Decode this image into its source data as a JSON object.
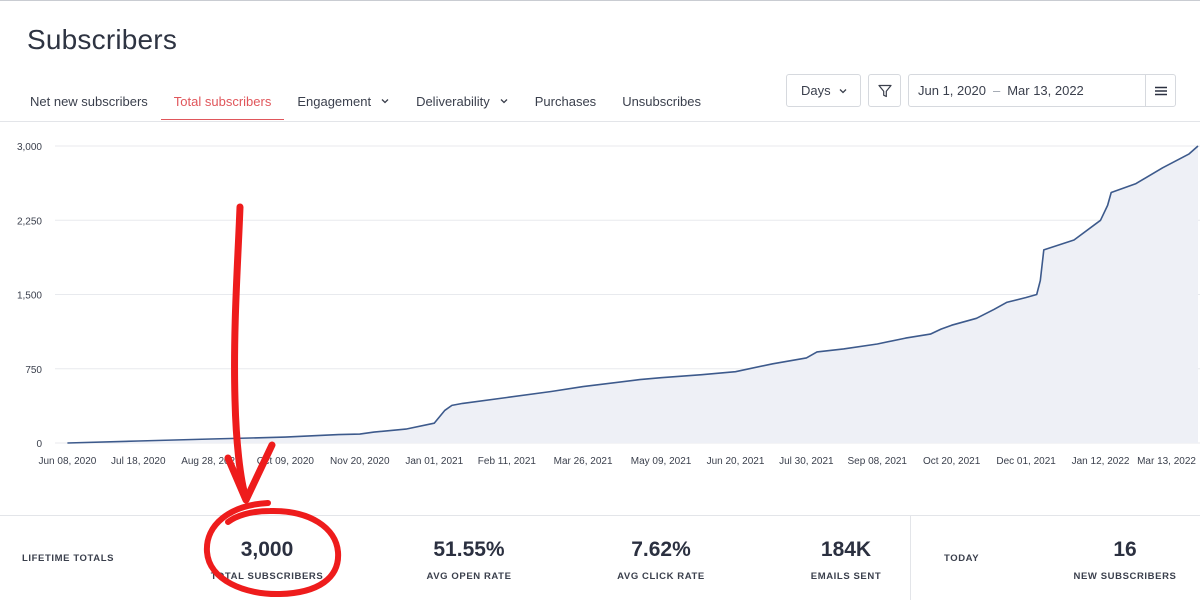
{
  "page": {
    "title": "Subscribers"
  },
  "tabs": [
    {
      "label": "Net new subscribers",
      "active": false,
      "dropdown": false
    },
    {
      "label": "Total subscribers",
      "active": true,
      "dropdown": false
    },
    {
      "label": "Engagement",
      "active": false,
      "dropdown": true
    },
    {
      "label": "Deliverability",
      "active": false,
      "dropdown": true
    },
    {
      "label": "Purchases",
      "active": false,
      "dropdown": false
    },
    {
      "label": "Unsubscribes",
      "active": false,
      "dropdown": false
    }
  ],
  "controls": {
    "granularity": "Days",
    "date_start": "Jun 1, 2020",
    "date_separator": "–",
    "date_end": "Mar 13, 2022",
    "icons": {
      "filter": "filter-icon",
      "menu": "menu-icon",
      "dropdown": "chevron-down-icon"
    }
  },
  "colors": {
    "accent": "#e0565b",
    "line": "#3d5a8c",
    "area": "#eef0f6",
    "grid": "#e8eaee",
    "annotation": "#ee1c1c"
  },
  "chart_data": {
    "type": "area",
    "title": "Total subscribers",
    "xlabel": "",
    "ylabel": "",
    "ylim": [
      0,
      3000
    ],
    "yticks": [
      0,
      750,
      1500,
      2250,
      3000
    ],
    "ytick_labels": [
      "0",
      "750",
      "1,500",
      "2,250",
      "3,000"
    ],
    "grid": true,
    "xlim_days": [
      0,
      645
    ],
    "xticks": [
      {
        "label": "Jun 08, 2020",
        "day": 7
      },
      {
        "label": "Jul 18, 2020",
        "day": 47
      },
      {
        "label": "Aug 28, 2020",
        "day": 88
      },
      {
        "label": "Oct 09, 2020",
        "day": 130
      },
      {
        "label": "Nov 20, 2020",
        "day": 172
      },
      {
        "label": "Jan 01, 2021",
        "day": 214
      },
      {
        "label": "Feb 11, 2021",
        "day": 255
      },
      {
        "label": "Mar 26, 2021",
        "day": 298
      },
      {
        "label": "May 09, 2021",
        "day": 342
      },
      {
        "label": "Jun 20, 2021",
        "day": 384
      },
      {
        "label": "Jul 30, 2021",
        "day": 424
      },
      {
        "label": "Sep 08, 2021",
        "day": 464
      },
      {
        "label": "Oct 20, 2021",
        "day": 506
      },
      {
        "label": "Dec 01, 2021",
        "day": 548
      },
      {
        "label": "Jan 12, 2022",
        "day": 590
      },
      {
        "label": "Mar 13, 2022",
        "day": 650
      }
    ],
    "series": [
      {
        "name": "Total subscribers",
        "day_offsets": [
          7,
          47,
          88,
          130,
          160,
          172,
          180,
          198,
          214,
          220,
          224,
          230,
          255,
          280,
          298,
          330,
          342,
          365,
          384,
          405,
          424,
          430,
          445,
          464,
          480,
          494,
          500,
          506,
          520,
          530,
          537,
          548,
          554,
          556,
          558,
          575,
          590,
          594,
          596,
          610,
          625,
          640,
          645
        ],
        "values": [
          0,
          20,
          40,
          60,
          85,
          90,
          110,
          140,
          200,
          330,
          380,
          400,
          460,
          520,
          570,
          640,
          660,
          690,
          720,
          800,
          860,
          920,
          950,
          1000,
          1060,
          1100,
          1150,
          1190,
          1260,
          1350,
          1420,
          1470,
          1500,
          1640,
          1950,
          2050,
          2250,
          2400,
          2530,
          2620,
          2780,
          2920,
          3000
        ]
      }
    ]
  },
  "totals": {
    "lifetime_label": "LIFETIME TOTALS",
    "stats": [
      {
        "value": "3,000",
        "label": "TOTAL SUBSCRIBERS"
      },
      {
        "value": "51.55%",
        "label": "AVG OPEN RATE"
      },
      {
        "value": "7.62%",
        "label": "AVG CLICK RATE"
      },
      {
        "value": "184K",
        "label": "EMAILS SENT"
      }
    ],
    "today_label": "TODAY",
    "today_stats": [
      {
        "value": "16",
        "label": "NEW SUBSCRIBERS"
      }
    ]
  }
}
